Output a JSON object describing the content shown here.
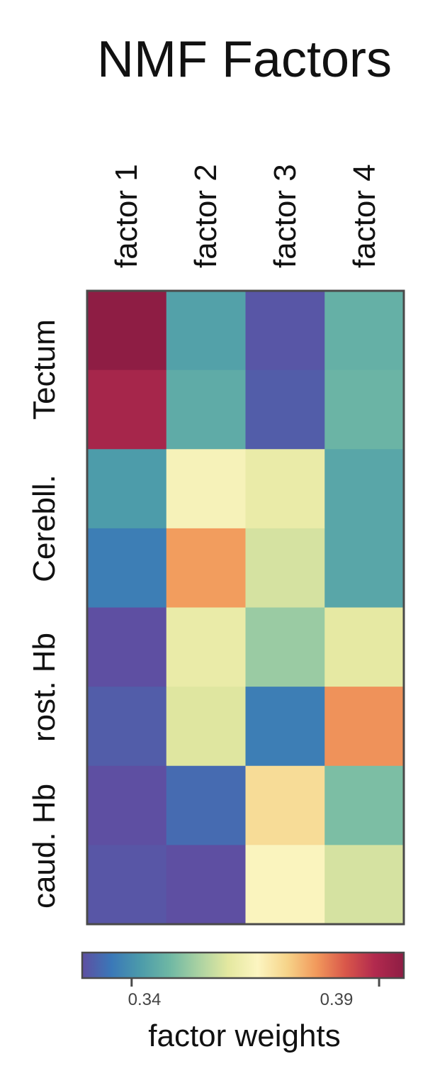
{
  "chart_data": {
    "type": "heatmap",
    "title": "NMF Factors",
    "columns": [
      "factor 1",
      "factor 2",
      "factor 3",
      "factor 4"
    ],
    "row_groups": [
      "Tectum",
      "Cerebll.",
      "rost. Hb",
      "caud. Hb"
    ],
    "rows_per_group": 2,
    "values": [
      [
        0.396,
        0.343,
        0.331,
        0.346
      ],
      [
        0.391,
        0.345,
        0.332,
        0.347
      ],
      [
        0.342,
        0.364,
        0.361,
        0.344
      ],
      [
        0.337,
        0.377,
        0.358,
        0.344
      ],
      [
        0.329,
        0.361,
        0.352,
        0.36
      ],
      [
        0.332,
        0.359,
        0.337,
        0.378
      ],
      [
        0.33,
        0.334,
        0.37,
        0.349
      ],
      [
        0.331,
        0.327,
        0.365,
        0.358
      ]
    ],
    "colorbar": {
      "label": "factor weights",
      "vmin": 0.33,
      "vmax": 0.395,
      "ticks": [
        0.34,
        0.39
      ],
      "tick_labels": [
        "0.34",
        "0.39"
      ],
      "colormap": "Spectral_r",
      "stops": [
        "#5E4FA2",
        "#3A78B8",
        "#4C9BAA",
        "#6FB8A4",
        "#ABD2A2",
        "#E4E8A0",
        "#FCF5C1",
        "#F6D48A",
        "#F29A5C",
        "#D9574A",
        "#B22A4E",
        "#8E1D44"
      ]
    }
  }
}
